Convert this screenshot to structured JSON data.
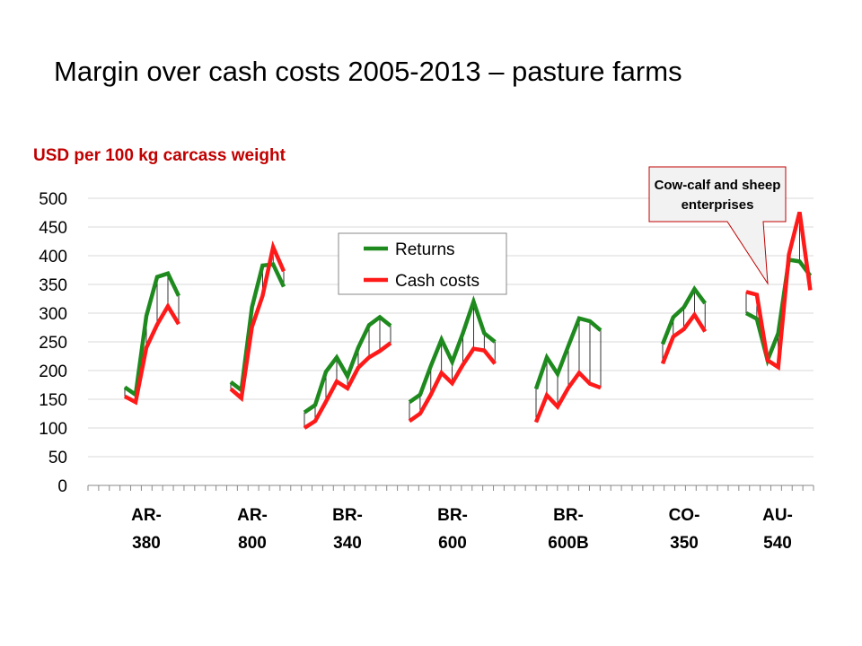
{
  "page": {
    "title": "Margin over cash costs 2005-2013 – pasture farms",
    "unit_label": "USD per 100 kg carcass weight"
  },
  "chart_data": {
    "type": "line",
    "ylim": [
      0,
      500
    ],
    "yticks": [
      0,
      50,
      100,
      150,
      200,
      250,
      300,
      350,
      400,
      450,
      500
    ],
    "grid": true,
    "legend_position": "top-center",
    "colors": {
      "returns": "#1e8a1e",
      "cash_costs": "#ff1a1a",
      "callout_fill": "#f2f2f2",
      "callout_border": "#c00000",
      "unit_label": "#c00000"
    },
    "groups": [
      {
        "label": [
          "AR-",
          "380"
        ],
        "returns": [
          171,
          158,
          295,
          363,
          369,
          330
        ],
        "cash_costs": [
          155,
          145,
          240,
          280,
          312,
          281
        ]
      },
      {
        "label": [
          "AR-",
          "800"
        ],
        "returns": [
          180,
          166,
          310,
          383,
          385,
          346
        ],
        "cash_costs": [
          168,
          152,
          276,
          330,
          415,
          373
        ]
      },
      {
        "label": [
          "BR-",
          "340"
        ],
        "returns": [
          127,
          140,
          198,
          223,
          190,
          240,
          279,
          293,
          278
        ],
        "cash_costs": [
          100,
          112,
          146,
          181,
          169,
          205,
          223,
          234,
          248
        ]
      },
      {
        "label": [
          "BR-",
          "600"
        ],
        "returns": [
          145,
          158,
          208,
          254,
          215,
          265,
          320,
          265,
          250
        ],
        "cash_costs": [
          112,
          125,
          158,
          196,
          178,
          210,
          238,
          235,
          212
        ]
      },
      {
        "label": [
          "BR-",
          "600B"
        ],
        "returns": [
          168,
          223,
          194,
          243,
          291,
          286,
          270
        ],
        "cash_costs": [
          110,
          157,
          137,
          170,
          196,
          177,
          170
        ]
      },
      {
        "label": [
          "CO-",
          "350"
        ],
        "returns": [
          246,
          293,
          310,
          342,
          317
        ],
        "cash_costs": [
          212,
          259,
          272,
          297,
          268
        ]
      },
      {
        "label": [
          "AU-",
          "540"
        ],
        "returns": [
          300,
          290,
          218,
          265,
          393,
          390,
          365
        ],
        "cash_costs": [
          337,
          332,
          218,
          206,
          402,
          476,
          340
        ]
      }
    ],
    "series": [
      {
        "name": "Returns",
        "key": "returns"
      },
      {
        "name": "Cash costs",
        "key": "cash_costs"
      }
    ],
    "annotations": [
      {
        "text": [
          "Cow-calf and sheep",
          "enterprises"
        ]
      }
    ]
  }
}
